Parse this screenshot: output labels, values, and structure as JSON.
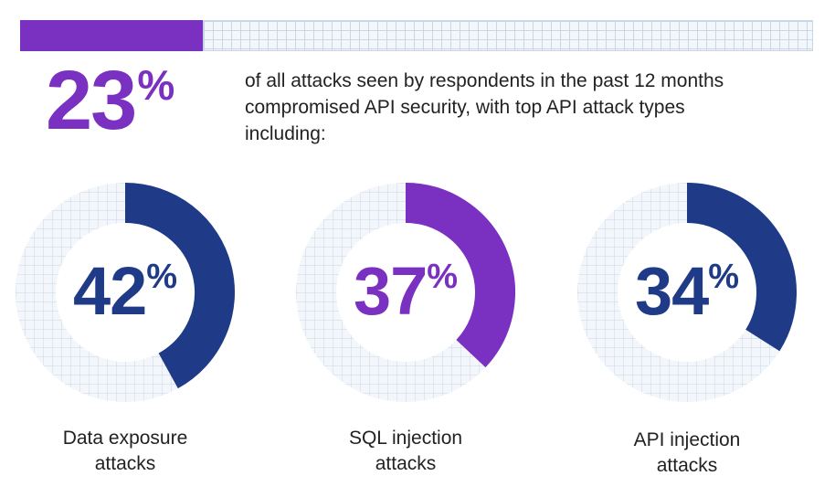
{
  "headline": {
    "value": "23",
    "unit": "%",
    "text": "of all attacks seen by respondents in the past 12 months compromised API security, with top API attack types including:"
  },
  "colors": {
    "purple": "#7a30c0",
    "navy": "#1f3b87",
    "grid": "#c9d6e6"
  },
  "chart_data": {
    "type": "pie",
    "title": "",
    "series": [
      {
        "label_line1": "Data exposure",
        "label_line2": "attacks",
        "value": 42,
        "unit": "%",
        "color": "#1f3b87"
      },
      {
        "label_line1": "SQL injection",
        "label_line2": "attacks",
        "value": 37,
        "unit": "%",
        "color": "#7a30c0"
      },
      {
        "label_line1": "API injection",
        "label_line2": "attacks",
        "value": 34,
        "unit": "%",
        "color": "#1f3b87"
      }
    ]
  }
}
